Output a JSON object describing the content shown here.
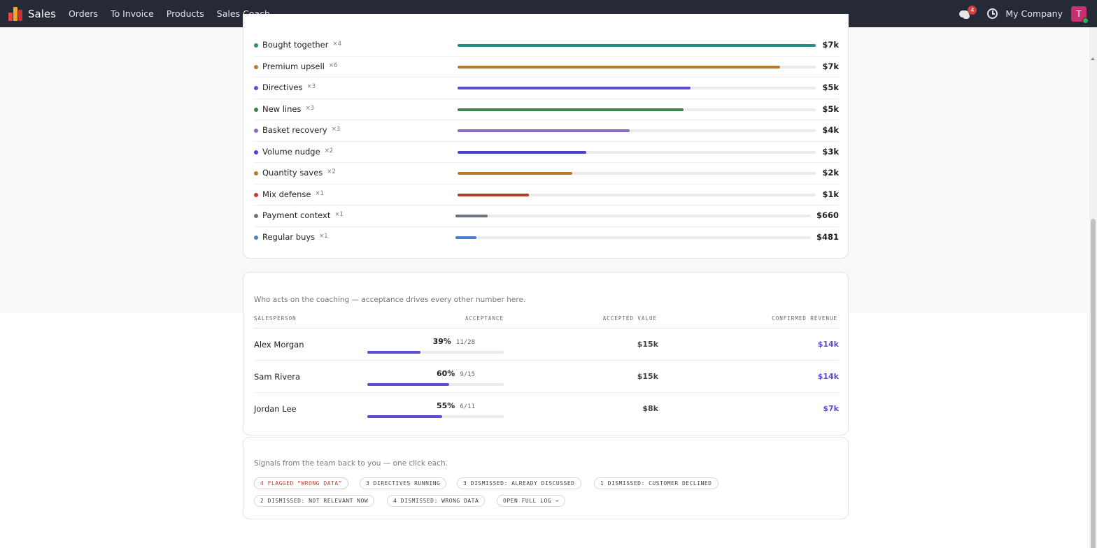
{
  "navbar": {
    "app_name": "Sales",
    "menu": [
      "Orders",
      "To Invoice",
      "Products",
      "Sales Coach"
    ],
    "chat_badge": "4",
    "company": "My Company",
    "avatar_initial": "T"
  },
  "plays": [
    {
      "label": "Bought together",
      "count": "×4",
      "value": "$7k",
      "fraction": 1.0,
      "color": "#2a8a86"
    },
    {
      "label": "Premium upsell",
      "count": "×6",
      "value": "$7k",
      "fraction": 0.9,
      "color": "#b87a2e"
    },
    {
      "label": "Directives",
      "count": "×3",
      "value": "$5k",
      "fraction": 0.65,
      "color": "#5c4fcf"
    },
    {
      "label": "New lines",
      "count": "×3",
      "value": "$5k",
      "fraction": 0.63,
      "color": "#3f7f4e"
    },
    {
      "label": "Basket recovery",
      "count": "×3",
      "value": "$4k",
      "fraction": 0.48,
      "color": "#8a66c9"
    },
    {
      "label": "Volume nudge",
      "count": "×2",
      "value": "$3k",
      "fraction": 0.36,
      "color": "#4a44cc"
    },
    {
      "label": "Quantity saves",
      "count": "×2",
      "value": "$2k",
      "fraction": 0.32,
      "color": "#b87a2e"
    },
    {
      "label": "Mix defense",
      "count": "×1",
      "value": "$1k",
      "fraction": 0.2,
      "color": "#b83c30"
    },
    {
      "label": "Payment context",
      "count": "×1",
      "value": "$660",
      "fraction": 0.09,
      "color": "#6b7480"
    },
    {
      "label": "Regular buys",
      "count": "×1",
      "value": "$481",
      "fraction": 0.06,
      "color": "#4a80d0"
    }
  ],
  "team": {
    "subtitle": "Who acts on the coaching — acceptance drives every other number here.",
    "headers": {
      "salesperson": "SALESPERSON",
      "acceptance": "ACCEPTANCE",
      "accepted_value": "ACCEPTED VALUE",
      "confirmed_revenue": "CONFIRMED REVENUE"
    },
    "rows": [
      {
        "name": "Alex Morgan",
        "pct": "39%",
        "frac": "11/28",
        "acceptance": 0.39,
        "accepted": "$15k",
        "revenue": "$14k"
      },
      {
        "name": "Sam Rivera",
        "pct": "60%",
        "frac": "9/15",
        "acceptance": 0.6,
        "accepted": "$15k",
        "revenue": "$14k"
      },
      {
        "name": "Jordan Lee",
        "pct": "55%",
        "frac": "6/11",
        "acceptance": 0.55,
        "accepted": "$8k",
        "revenue": "$7k"
      }
    ]
  },
  "signals": {
    "subtitle": "Signals from the team back to you — one click each.",
    "chips": [
      "4 FLAGGED “WRONG DATA”",
      "3 DIRECTIVES RUNNING",
      "3 DISMISSED: ALREADY DISCUSSED",
      "1 DISMISSED: CUSTOMER DECLINED",
      "2 DISMISSED: NOT RELEVANT NOW",
      "4 DISMISSED: WRONG DATA",
      "OPEN FULL LOG →"
    ]
  }
}
